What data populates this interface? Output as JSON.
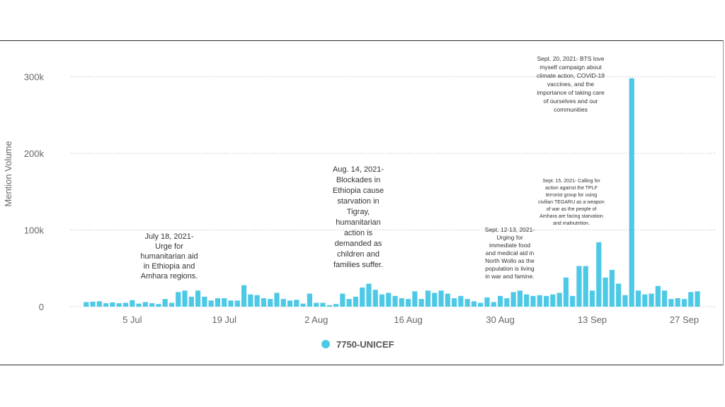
{
  "colors": {
    "bar": "#4dc9e6",
    "grid": "#cfcfcf",
    "axis_text": "#666666",
    "annotation_text": "#333333"
  },
  "chart_data": {
    "type": "bar",
    "ylabel": "Mention Volume",
    "ylim": [
      0,
      330000
    ],
    "yticks": [
      {
        "value": 0,
        "label": "0"
      },
      {
        "value": 100000,
        "label": "100k"
      },
      {
        "value": 200000,
        "label": "200k"
      },
      {
        "value": 300000,
        "label": "300k"
      }
    ],
    "grid": true,
    "x_start_date": "Jun 28",
    "xticks": [
      {
        "day": 7,
        "label": "5 Jul"
      },
      {
        "day": 21,
        "label": "19 Jul"
      },
      {
        "day": 35,
        "label": "2 Aug"
      },
      {
        "day": 49,
        "label": "16 Aug"
      },
      {
        "day": 63,
        "label": "30 Aug"
      },
      {
        "day": 77,
        "label": "13 Sep"
      },
      {
        "day": 91,
        "label": "27 Sep"
      }
    ],
    "series": [
      {
        "name": "7750-UNICEF",
        "values": [
          6000,
          6500,
          7000,
          4500,
          5500,
          4500,
          5000,
          8500,
          4000,
          6000,
          4500,
          3500,
          10000,
          5000,
          19000,
          21000,
          13000,
          21000,
          13000,
          8000,
          11000,
          11000,
          8000,
          8000,
          28000,
          16000,
          15000,
          11000,
          10000,
          18000,
          10000,
          8000,
          9000,
          4000,
          17000,
          5000,
          5000,
          2000,
          3500,
          17000,
          10000,
          13000,
          25000,
          30000,
          22000,
          16000,
          18000,
          14000,
          11000,
          10000,
          20000,
          10000,
          21000,
          18000,
          21000,
          17000,
          11000,
          14000,
          10000,
          7000,
          5000,
          12000,
          6000,
          14000,
          11000,
          19000,
          21000,
          16000,
          14000,
          15000,
          14000,
          16000,
          18000,
          38000,
          14000,
          53000,
          53000,
          21000,
          84000,
          38000,
          48000,
          30000,
          15000,
          298000,
          21000,
          16000,
          17000,
          27000,
          21000,
          10000,
          11000,
          10000,
          19000,
          20000
        ]
      }
    ],
    "annotations": [
      {
        "id": "jul18",
        "lines": [
          "July 18, 2021-",
          "Urge for",
          "humanitarian aid",
          "in Ethiopia and",
          "Amhara regions."
        ]
      },
      {
        "id": "aug14",
        "lines": [
          "Aug. 14, 2021-",
          "Blockades in",
          "Ethiopia cause",
          "starvation in",
          "Tigray,",
          "humanitarian",
          "action is",
          "demanded as",
          "children and",
          "families suffer."
        ]
      },
      {
        "id": "sep12",
        "lines": [
          "Sept. 12-13, 2021-",
          "Urging for",
          "immediate food",
          "and medical aid in",
          "North Wollo as the",
          "population is living",
          "in war and famine."
        ]
      },
      {
        "id": "sep15",
        "lines": [
          "Sept. 15, 2021- Calling for",
          "action against the TPLF",
          "terrorist group for using",
          "civilian TEGARU as a weapon",
          "of war as the people of",
          "Amhara are facing starvation",
          "and malnutrition."
        ]
      },
      {
        "id": "sep20",
        "lines": [
          "Sept. 20, 2021- BTS love",
          "myself campaign about",
          "climate action, COVID-19",
          "vaccines, and the",
          "importance of taking care",
          "of ourselves and our",
          "communities"
        ]
      }
    ]
  }
}
